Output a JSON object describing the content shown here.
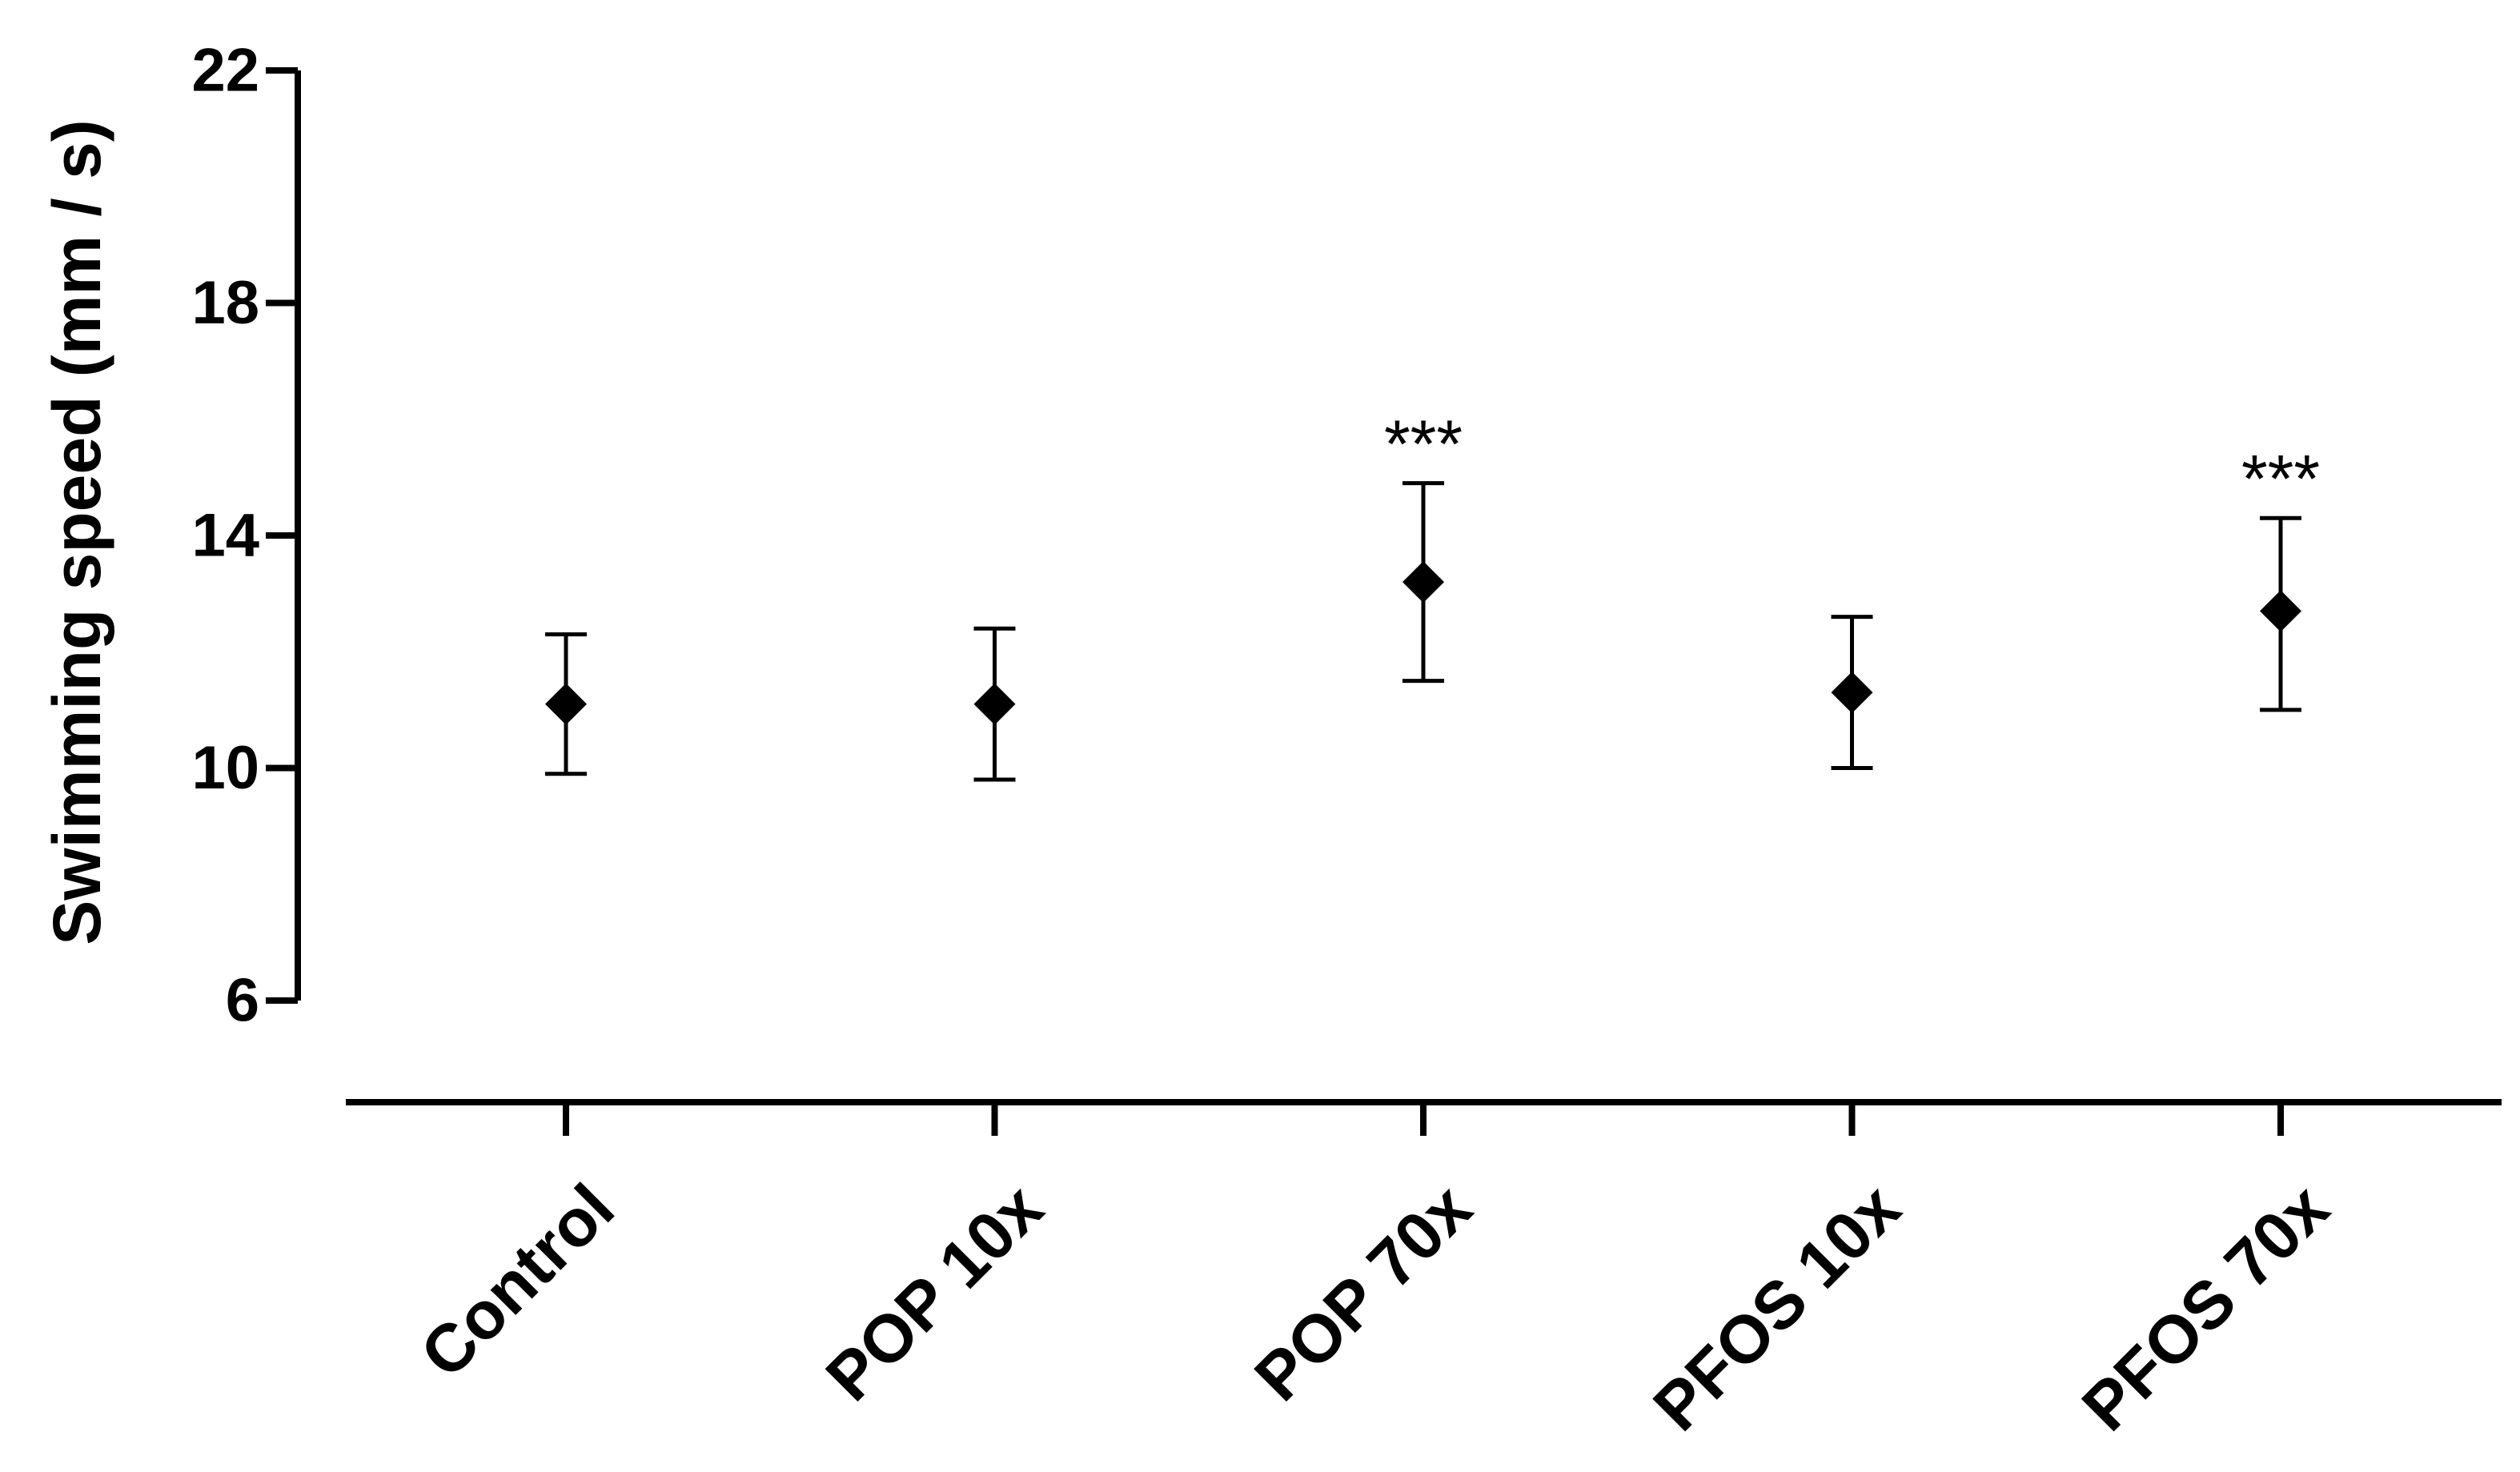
{
  "chart_data": {
    "type": "scatter",
    "title": "",
    "xlabel": "",
    "ylabel": "Swimming speed (mm / s)",
    "ylim": [
      6,
      22
    ],
    "yticks": [
      6,
      10,
      14,
      18,
      22
    ],
    "categories": [
      "Control",
      "POP 10x",
      "POP 70x",
      "PFOS 10x",
      "PFOS 70x"
    ],
    "series": [
      {
        "marker": "diamond",
        "color": "#000000",
        "values": [
          11.1,
          11.1,
          13.2,
          11.3,
          12.7
        ],
        "error_low": [
          9.9,
          9.8,
          11.5,
          10.0,
          11.0
        ],
        "error_high": [
          12.3,
          12.4,
          14.9,
          12.6,
          14.3
        ]
      }
    ],
    "annotations": [
      "",
      "",
      "***",
      "",
      "***"
    ],
    "grid": false,
    "legend": "none"
  }
}
